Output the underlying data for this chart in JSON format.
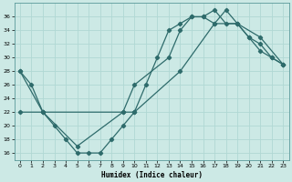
{
  "xlabel": "Humidex (Indice chaleur)",
  "xlim": [
    -0.5,
    23.5
  ],
  "ylim": [
    15,
    38
  ],
  "yticks": [
    16,
    18,
    20,
    22,
    24,
    26,
    28,
    30,
    32,
    34,
    36
  ],
  "xticks": [
    0,
    1,
    2,
    3,
    4,
    5,
    6,
    7,
    8,
    9,
    10,
    11,
    12,
    13,
    14,
    15,
    16,
    17,
    18,
    19,
    20,
    21,
    22,
    23
  ],
  "bg_color": "#cce9e5",
  "grid_color": "#b0d8d4",
  "line_color": "#2e6b6b",
  "line1_x": [
    0,
    1,
    2,
    3,
    4,
    5,
    6,
    7,
    8,
    9,
    10,
    11,
    12,
    13,
    14,
    15,
    16,
    17,
    18,
    19,
    20,
    21,
    22,
    23
  ],
  "line1_y": [
    28,
    26,
    22,
    20,
    18,
    16,
    16,
    16,
    18,
    20,
    22,
    26,
    30,
    34,
    35,
    36,
    36,
    35,
    37,
    35,
    33,
    31,
    30,
    29
  ],
  "line2_x": [
    0,
    2,
    9,
    10,
    13,
    14,
    15,
    16,
    17,
    18,
    19,
    20,
    21,
    22,
    23
  ],
  "line2_y": [
    22,
    22,
    22,
    26,
    30,
    34,
    36,
    36,
    37,
    35,
    35,
    33,
    32,
    30,
    29
  ],
  "line3_x": [
    0,
    2,
    5,
    9,
    10,
    14,
    17,
    19,
    21,
    23
  ],
  "line3_y": [
    28,
    22,
    17,
    22,
    22,
    28,
    35,
    35,
    33,
    29
  ]
}
